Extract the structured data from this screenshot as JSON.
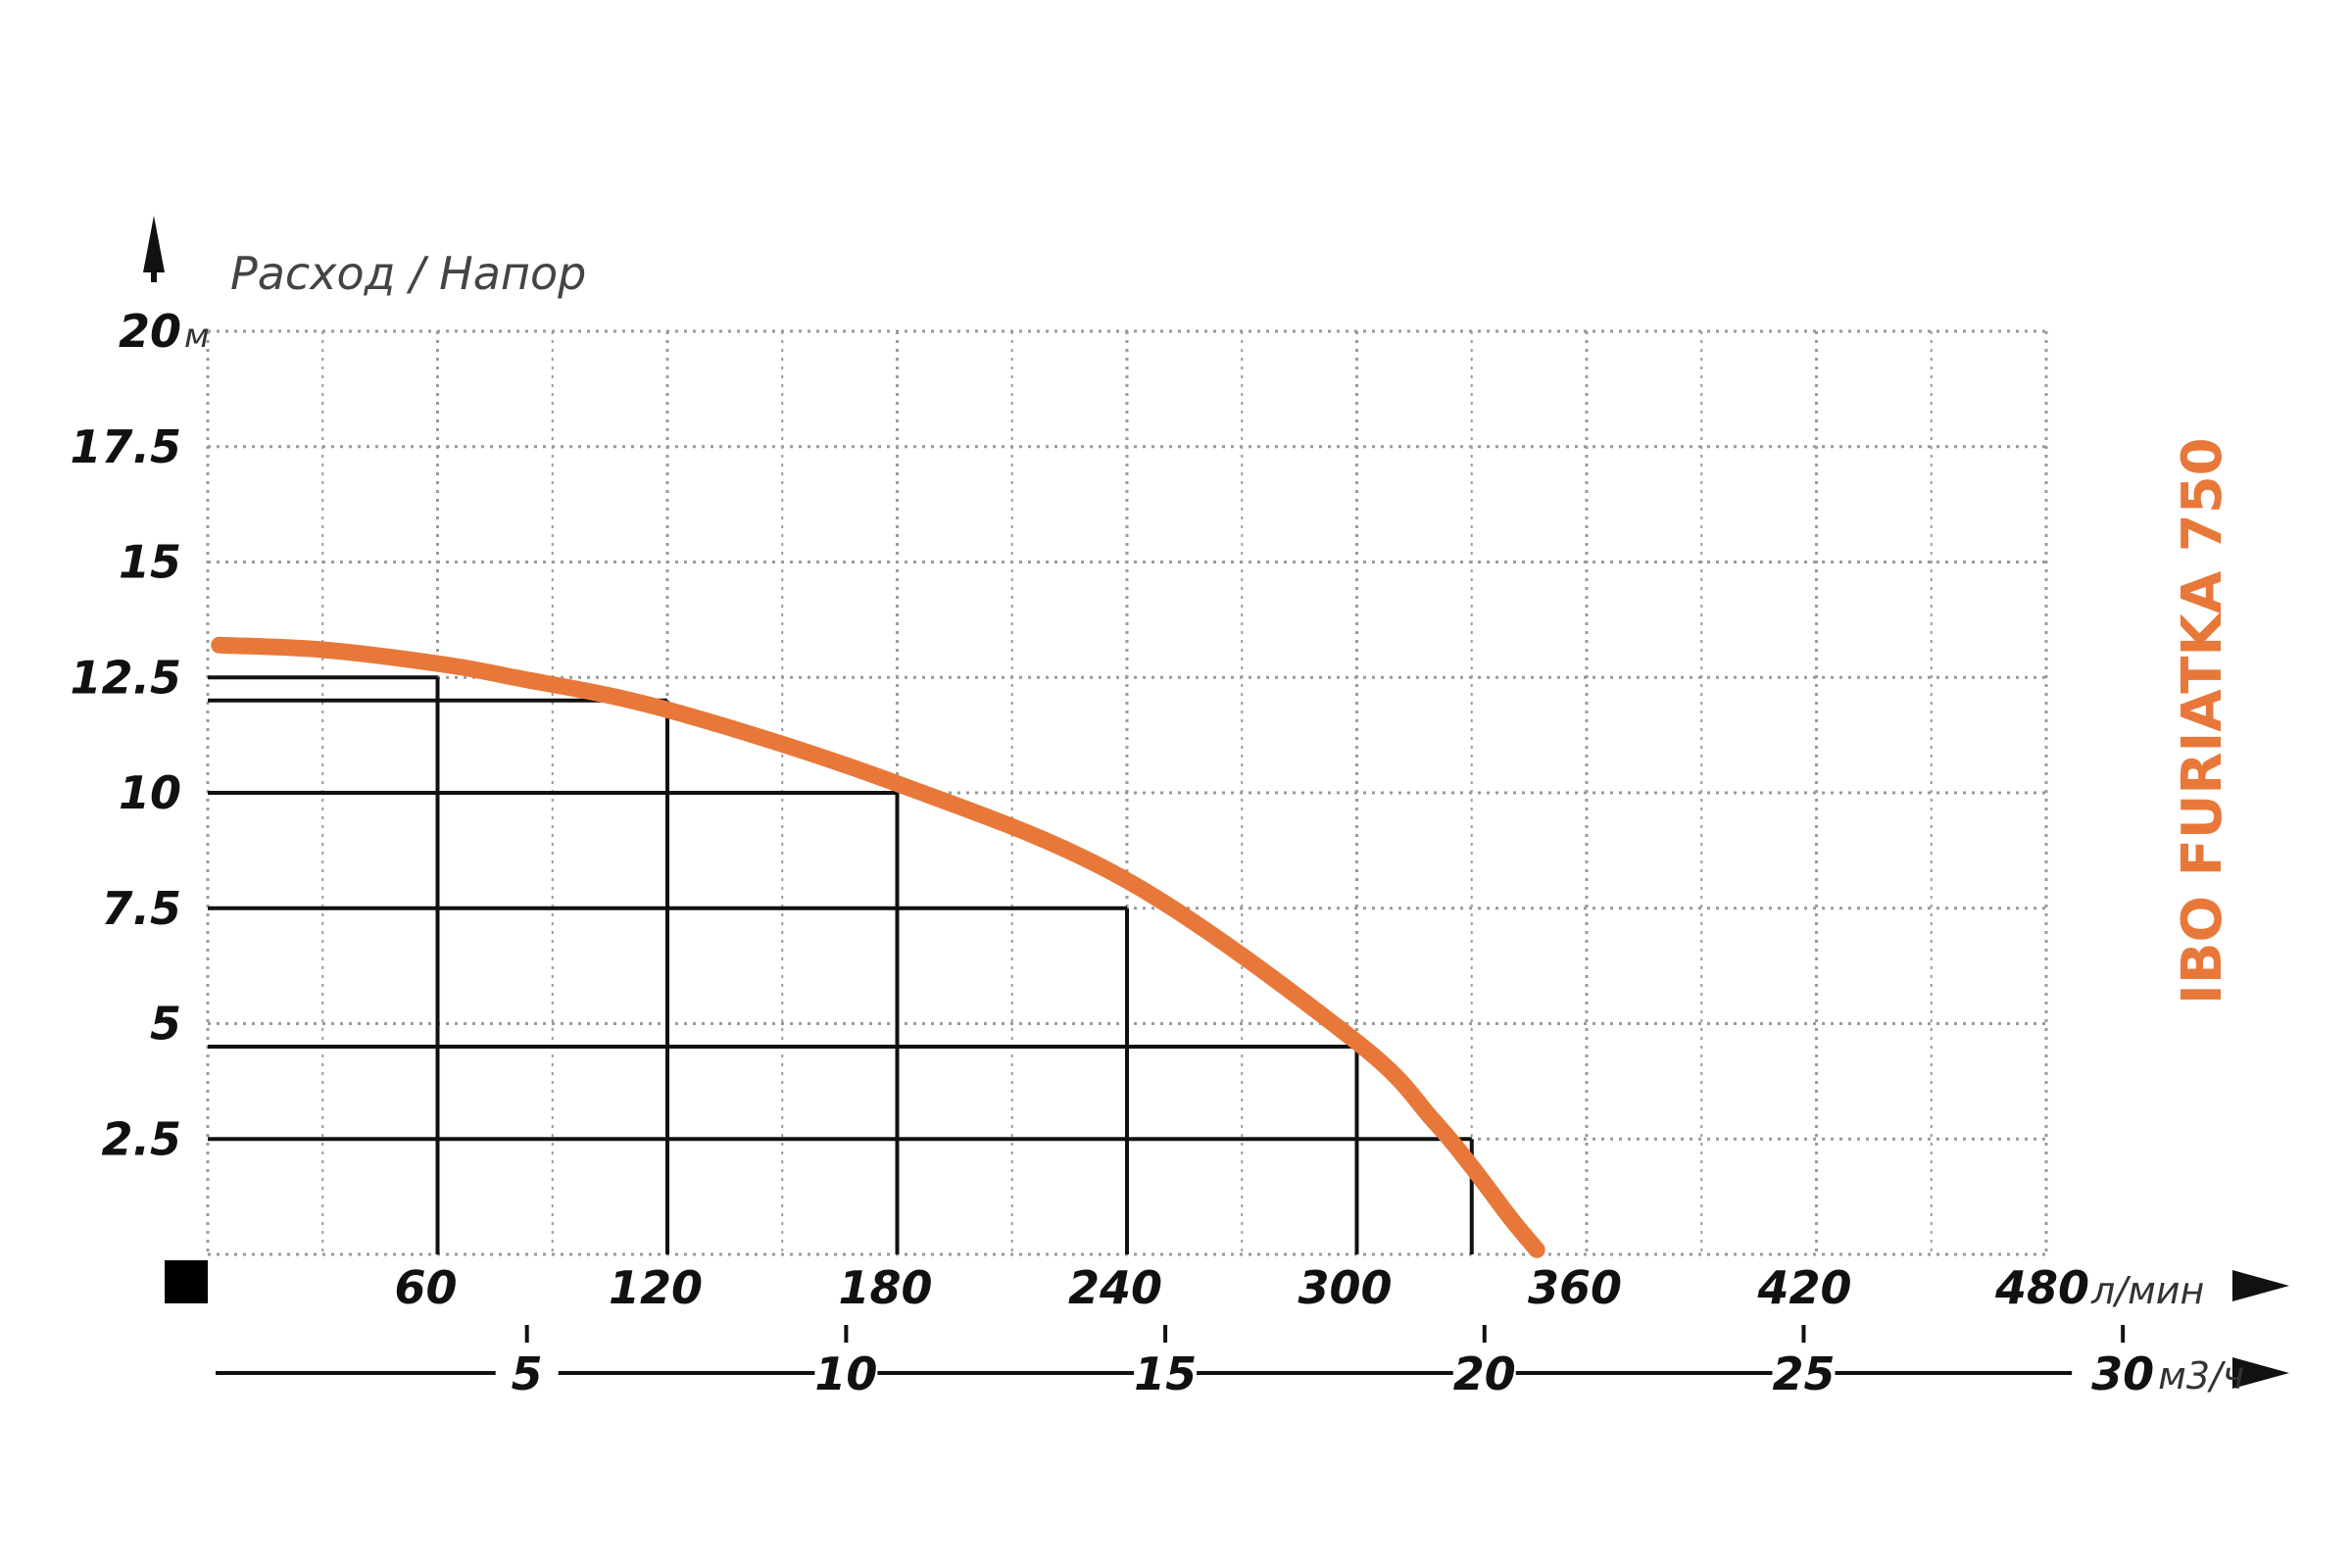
{
  "chart_data": {
    "type": "line",
    "title": "Расход / Напор",
    "model": "IBO FURIATKA 750",
    "y_unit": "м",
    "x_unit": "л/мин",
    "x2_unit": "м3/ч",
    "y_ticks": [
      "20",
      "17.5",
      "15",
      "12.5",
      "10",
      "7.5",
      "5",
      "2.5"
    ],
    "x_ticks": [
      "60",
      "120",
      "180",
      "240",
      "300",
      "360",
      "420",
      "480"
    ],
    "x2_ticks": [
      "5",
      "10",
      "15",
      "20",
      "25",
      "30"
    ],
    "xlim": [
      0,
      480
    ],
    "ylim": [
      0,
      20
    ],
    "grid": true,
    "series": [
      {
        "x": [
          3,
          30,
          60,
          80,
          120,
          180,
          240,
          300,
          320,
          330,
          340,
          347
        ],
        "y": [
          13.2,
          13.1,
          12.8,
          12.5,
          11.8,
          10.2,
          8.1,
          4.6,
          2.9,
          1.9,
          0.8,
          0.1
        ]
      }
    ],
    "reference_points": [
      {
        "x": 60,
        "y": 12.5
      },
      {
        "x": 120,
        "y": 12.0
      },
      {
        "x": 180,
        "y": 10.0
      },
      {
        "x": 240,
        "y": 7.5
      },
      {
        "x": 300,
        "y": 4.5
      },
      {
        "x": 330,
        "y": 2.5
      }
    ],
    "colors": {
      "curve": "#E8783A",
      "model": "#E8783A",
      "grid": "#9A9A9A",
      "reference": "#111111",
      "axis": "#111111"
    }
  }
}
